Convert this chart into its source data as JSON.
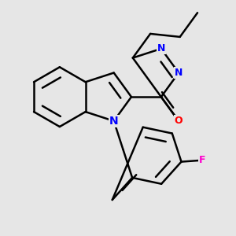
{
  "bg_color": "#e6e6e6",
  "bond_color": "#000000",
  "bond_width": 1.8,
  "atom_colors": {
    "N": "#0000ff",
    "O": "#ff0000",
    "F": "#ff00cc",
    "C": "#000000"
  },
  "font_size": 9,
  "fig_width": 3.0,
  "fig_height": 3.0,
  "dpi": 100
}
